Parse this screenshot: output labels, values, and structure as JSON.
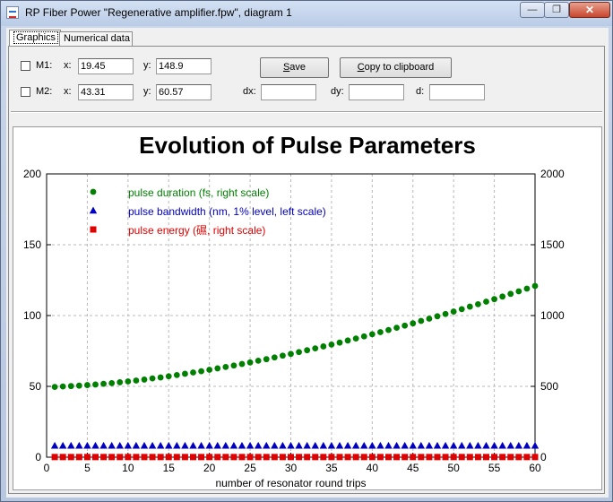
{
  "window": {
    "title": "RP Fiber Power \"Regenerative amplifier.fpw\", diagram 1",
    "min_glyph": "—",
    "max_glyph": "❐",
    "close_glyph": "✕"
  },
  "tabs": [
    {
      "label": "Graphics",
      "active": true
    },
    {
      "label": "Numerical data",
      "active": false
    }
  ],
  "markers": {
    "m1": {
      "label": "M1:",
      "x_label": "x:",
      "x_value": "19.45",
      "y_label": "y:",
      "y_value": "148.9"
    },
    "m2": {
      "label": "M2:",
      "x_label": "x:",
      "x_value": "43.31",
      "y_label": "y:",
      "y_value": "60.57"
    },
    "dx_label": "dx:",
    "dx_value": "",
    "dy_label": "dy:",
    "dy_value": "",
    "d_label": "d:",
    "d_value": ""
  },
  "buttons": {
    "save_prefix": "",
    "save_accel": "S",
    "save_rest": "ave",
    "copy_prefix": "",
    "copy_accel": "C",
    "copy_rest": "opy to clipboard"
  },
  "chart_data": {
    "type": "scatter",
    "title": "Evolution of Pulse Parameters",
    "xlabel": "number of resonator round trips",
    "ylabel": "",
    "xlim": [
      0,
      60
    ],
    "ylim_left": [
      0,
      200
    ],
    "ylim_right": [
      0,
      2000
    ],
    "x_ticks": [
      0,
      5,
      10,
      15,
      20,
      25,
      30,
      35,
      40,
      45,
      50,
      55,
      60
    ],
    "y_ticks_left": [
      0,
      50,
      100,
      150,
      200
    ],
    "y_ticks_right": [
      0,
      500,
      1000,
      1500,
      2000
    ],
    "grid": true,
    "legend_position": "top-left",
    "x": [
      1,
      2,
      3,
      4,
      5,
      6,
      7,
      8,
      9,
      10,
      11,
      12,
      13,
      14,
      15,
      16,
      17,
      18,
      19,
      20,
      21,
      22,
      23,
      24,
      25,
      26,
      27,
      28,
      29,
      30,
      31,
      32,
      33,
      34,
      35,
      36,
      37,
      38,
      39,
      40,
      41,
      42,
      43,
      44,
      45,
      46,
      47,
      48,
      49,
      50,
      51,
      52,
      53,
      54,
      55,
      56,
      57,
      58,
      59,
      60
    ],
    "series": [
      {
        "name": "pulse duration (fs, right scale)",
        "axis": "right",
        "color": "#008000",
        "marker": "circle",
        "values": [
          496,
          499,
          502,
          505,
          509,
          513,
          518,
          523,
          529,
          535,
          541,
          548,
          556,
          563,
          571,
          580,
          589,
          598,
          607,
          617,
          627,
          637,
          647,
          658,
          669,
          681,
          692,
          704,
          717,
          729,
          742,
          755,
          768,
          782,
          795,
          809,
          824,
          838,
          853,
          868,
          883,
          898,
          914,
          929,
          945,
          962,
          978,
          995,
          1011,
          1028,
          1045,
          1063,
          1080,
          1098,
          1116,
          1134,
          1153,
          1171,
          1190,
          1209
        ]
      },
      {
        "name": "pulse bandwidth (nm, 1% level, left scale)",
        "axis": "left",
        "color": "#0000c0",
        "marker": "triangle",
        "values": [
          8,
          8,
          8,
          8,
          8,
          8,
          8,
          8,
          8,
          8,
          8,
          8,
          8,
          8,
          8,
          8,
          8,
          8,
          8,
          8,
          8,
          8,
          8,
          8,
          8,
          8,
          8,
          8,
          8,
          8,
          8,
          8,
          8,
          8,
          8,
          8,
          8,
          8,
          8,
          8,
          8,
          8,
          8,
          8,
          8,
          8,
          8,
          8,
          8,
          8,
          8,
          8,
          8,
          8,
          8,
          8,
          8,
          8,
          8,
          8
        ]
      },
      {
        "name": "pulse energy (礘, right scale)",
        "axis": "right",
        "color": "#e00000",
        "marker": "square",
        "values": [
          1,
          1,
          1,
          1,
          1,
          1,
          1,
          1,
          1,
          1,
          1,
          1,
          1,
          1,
          1,
          1,
          1,
          1,
          1,
          1,
          1,
          1,
          1,
          1,
          1,
          1,
          1,
          1,
          1,
          1,
          1,
          1,
          1,
          1,
          1,
          1,
          1,
          1,
          1,
          1,
          1,
          1,
          1,
          1,
          1,
          1,
          1,
          1,
          1,
          1,
          1,
          1,
          1,
          1,
          1,
          1,
          1,
          1,
          1,
          1
        ]
      }
    ]
  }
}
